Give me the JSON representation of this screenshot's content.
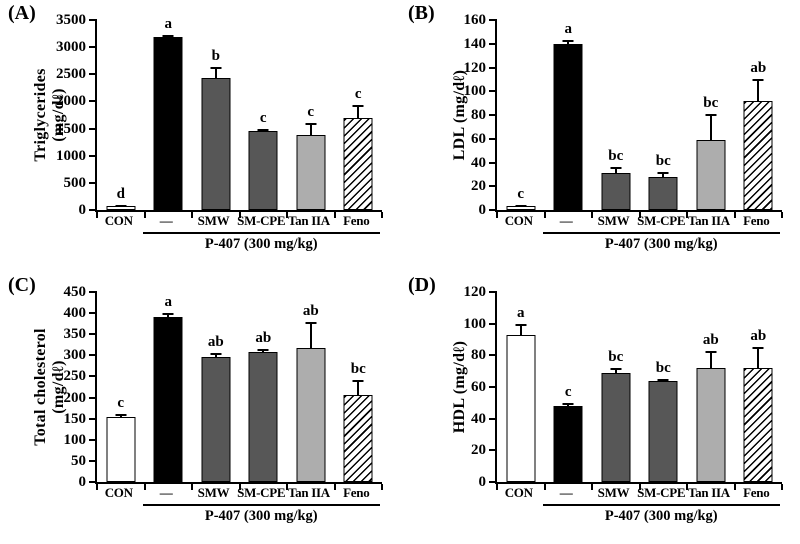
{
  "style": {
    "background": "#ffffff",
    "axis_color": "#000000",
    "bar_colors": {
      "open": "#ffffff",
      "solid": "#000000",
      "dark_gray": "#575757",
      "light_gray": "#adadad"
    },
    "hatch_line_color": "#000000",
    "bar_style_keys": [
      "open",
      "solid",
      "dark_gray",
      "dark_gray",
      "light_gray",
      "hatch"
    ]
  },
  "chart_data": [
    {
      "type": "bar",
      "panel": "(A)",
      "ylabel": "Triglycerides (mg/dℓ)",
      "ylabel_lines": [
        "Triglycerides",
        "(mg/dℓ)"
      ],
      "categories": [
        "CON",
        "—",
        "SMW",
        "SM-CPE",
        "Tan IIA",
        "Feno"
      ],
      "values": [
        75,
        3190,
        2430,
        1460,
        1390,
        1700
      ],
      "errors": [
        20,
        35,
        200,
        30,
        220,
        230
      ],
      "sig_letters": [
        "d",
        "a",
        "b",
        "c",
        "c",
        "c"
      ],
      "ylim": [
        0,
        3500
      ],
      "yticks": [
        0,
        500,
        1000,
        1500,
        2000,
        2500,
        3000,
        3500
      ],
      "group_label": "P-407 (300 mg/kg)",
      "group_span": [
        1,
        5
      ]
    },
    {
      "type": "bar",
      "panel": "(B)",
      "ylabel": "LDL (mg/dℓ)",
      "ylabel_lines": [
        "LDL (mg/dℓ)"
      ],
      "categories": [
        "CON",
        "—",
        "SMW",
        "SM-CPE",
        "Tan IIA",
        "Feno"
      ],
      "values": [
        3,
        140,
        31,
        28,
        59,
        92
      ],
      "errors": [
        1,
        3,
        5,
        4,
        22,
        18
      ],
      "sig_letters": [
        "c",
        "a",
        "bc",
        "bc",
        "bc",
        "ab"
      ],
      "ylim": [
        0,
        160
      ],
      "yticks": [
        0,
        20,
        40,
        60,
        80,
        100,
        120,
        140,
        160
      ],
      "group_label": "P-407 (300 mg/kg)",
      "group_span": [
        1,
        5
      ]
    },
    {
      "type": "bar",
      "panel": "(C)",
      "ylabel": "Total cholesterol (mg/dℓ)",
      "ylabel_lines": [
        "Total cholesterol",
        "(mg/dℓ)"
      ],
      "categories": [
        "CON",
        "—",
        "SMW",
        "SM-CPE",
        "Tan IIA",
        "Feno"
      ],
      "values": [
        155,
        392,
        295,
        307,
        318,
        205
      ],
      "errors": [
        7,
        8,
        10,
        8,
        62,
        37
      ],
      "sig_letters": [
        "c",
        "a",
        "ab",
        "ab",
        "ab",
        "bc"
      ],
      "ylim": [
        0,
        450
      ],
      "yticks": [
        0,
        50,
        100,
        150,
        200,
        250,
        300,
        350,
        400,
        450
      ],
      "group_label": "P-407 (300 mg/kg)",
      "group_span": [
        1,
        5
      ]
    },
    {
      "type": "bar",
      "panel": "(D)",
      "ylabel": "HDL (mg/dℓ)",
      "ylabel_lines": [
        "HDL (mg/dℓ)"
      ],
      "categories": [
        "CON",
        "—",
        "SMW",
        "SM-CPE",
        "Tan IIA",
        "Feno"
      ],
      "values": [
        93,
        48,
        69,
        64,
        72,
        72
      ],
      "errors": [
        7,
        2,
        3,
        1,
        11,
        13
      ],
      "sig_letters": [
        "a",
        "c",
        "bc",
        "bc",
        "ab",
        "ab"
      ],
      "ylim": [
        0,
        120
      ],
      "yticks": [
        0,
        20,
        40,
        60,
        80,
        100,
        120
      ],
      "group_label": "P-407 (300 mg/kg)",
      "group_span": [
        1,
        5
      ]
    }
  ]
}
